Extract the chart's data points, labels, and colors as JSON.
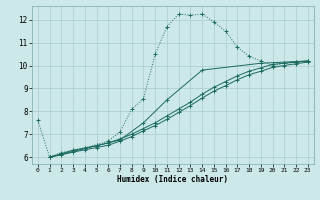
{
  "title": "",
  "xlabel": "Humidex (Indice chaleur)",
  "bg_color": "#cce8e8",
  "grid_color": "#aacccc",
  "line_color": "#1a6a60",
  "xlim": [
    -0.5,
    23.5
  ],
  "ylim": [
    5.7,
    12.6
  ],
  "yticks": [
    6,
    7,
    8,
    9,
    10,
    11,
    12
  ],
  "xticks": [
    0,
    1,
    2,
    3,
    4,
    5,
    6,
    7,
    8,
    9,
    10,
    11,
    12,
    13,
    14,
    15,
    16,
    17,
    18,
    19,
    20,
    21,
    22,
    23
  ],
  "line1_dotted": {
    "x": [
      0,
      1,
      2,
      3,
      4,
      5,
      6,
      7,
      8,
      9,
      10,
      11,
      12,
      13,
      14,
      15,
      16,
      17,
      18,
      19,
      20,
      21,
      22,
      23
    ],
    "y": [
      7.6,
      6.0,
      6.2,
      6.3,
      6.4,
      6.55,
      6.7,
      7.1,
      8.1,
      8.55,
      10.5,
      11.7,
      12.25,
      12.2,
      12.25,
      11.9,
      11.5,
      10.8,
      10.4,
      10.2,
      10.0,
      10.1,
      10.15,
      10.2
    ]
  },
  "line2_solid": {
    "x": [
      1,
      2,
      3,
      4,
      5,
      6,
      7,
      8,
      9,
      10,
      11,
      12,
      13,
      14,
      15,
      16,
      17,
      18,
      19,
      20,
      21,
      22,
      23
    ],
    "y": [
      6.0,
      6.15,
      6.3,
      6.4,
      6.5,
      6.62,
      6.8,
      7.0,
      7.25,
      7.5,
      7.8,
      8.1,
      8.4,
      8.75,
      9.05,
      9.3,
      9.55,
      9.75,
      9.9,
      10.05,
      10.1,
      10.15,
      10.2
    ]
  },
  "line3_solid": {
    "x": [
      1,
      2,
      3,
      4,
      5,
      6,
      7,
      8,
      9,
      10,
      11,
      12,
      13,
      14,
      15,
      16,
      17,
      18,
      19,
      20,
      21,
      22,
      23
    ],
    "y": [
      6.0,
      6.1,
      6.22,
      6.32,
      6.42,
      6.52,
      6.7,
      6.9,
      7.15,
      7.38,
      7.65,
      7.95,
      8.25,
      8.58,
      8.88,
      9.12,
      9.38,
      9.6,
      9.75,
      9.92,
      10.0,
      10.08,
      10.15
    ]
  },
  "line4_solid": {
    "x": [
      1,
      7,
      9,
      11,
      14,
      19,
      23
    ],
    "y": [
      6.0,
      6.75,
      7.5,
      8.5,
      9.8,
      10.1,
      10.2
    ]
  }
}
